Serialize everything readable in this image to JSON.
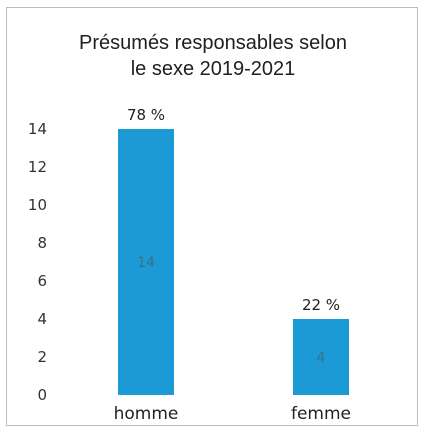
{
  "chart_data": {
    "type": "bar",
    "title_lines": [
      "Présumés responsables selon",
      "le sexe 2019-2021"
    ],
    "categories": [
      "homme",
      "femme"
    ],
    "values": [
      14,
      4
    ],
    "data_labels": [
      "14",
      "4"
    ],
    "percent_labels": [
      "78 %",
      "22 %"
    ],
    "xlabel": "",
    "ylabel": "",
    "ylim": [
      0,
      14
    ],
    "yticks": [
      "0",
      "2",
      "4",
      "6",
      "8",
      "10",
      "12",
      "14"
    ],
    "grid": false,
    "legend": "none",
    "bar_color": "#1b9ad6"
  }
}
